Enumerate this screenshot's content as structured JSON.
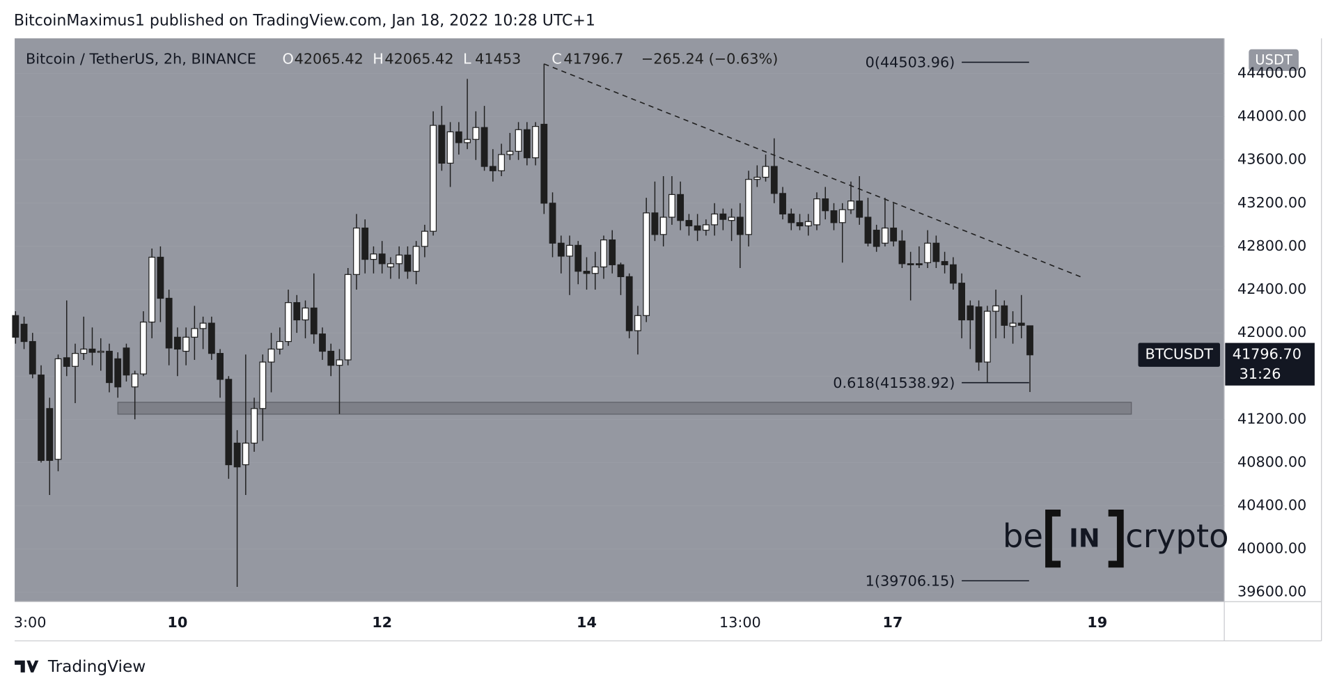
{
  "header": {
    "title": "BitcoinMaximus1 published on TradingView.com, Jan 18, 2022 10:28 UTC+1"
  },
  "chart_data": {
    "type": "candlestick",
    "symbol": "Bitcoin / TetherUS, 2h, BINANCE",
    "ohlc_legend": {
      "O": 42065.42,
      "H": 42065.42,
      "L": 41453.0,
      "C": 41796.7,
      "change": "−265.24 (−0.63%)"
    },
    "ohlc_letters": [
      "O",
      "H",
      "L",
      "C"
    ],
    "currency": "USDT",
    "ticker": "BTCUSDT",
    "last_price": {
      "value": 41796.7,
      "label": "41796.70"
    },
    "countdown": "31:26",
    "candles": [
      [
        42160,
        42200,
        41900,
        41960
      ],
      [
        42080,
        42150,
        41850,
        41920
      ],
      [
        41920,
        42000,
        41580,
        41620
      ],
      [
        41610,
        41700,
        40800,
        40820
      ],
      [
        41300,
        41400,
        40500,
        40820
      ],
      [
        40830,
        41800,
        40720,
        41760
      ],
      [
        41770,
        42300,
        41600,
        41690
      ],
      [
        41690,
        41900,
        41350,
        41810
      ],
      [
        41810,
        42150,
        41750,
        41850
      ],
      [
        41850,
        42050,
        41700,
        41820
      ],
      [
        41820,
        41950,
        41650,
        41830
      ],
      [
        41830,
        41900,
        41450,
        41540
      ],
      [
        41760,
        41820,
        41400,
        41500
      ],
      [
        41860,
        41900,
        41550,
        41610
      ],
      [
        41500,
        41650,
        41200,
        41620
      ],
      [
        41620,
        42200,
        41600,
        42100
      ],
      [
        42100,
        42780,
        41950,
        42700
      ],
      [
        42700,
        42800,
        42100,
        42320
      ],
      [
        42320,
        42400,
        41700,
        41860
      ],
      [
        41960,
        42050,
        41600,
        41850
      ],
      [
        41830,
        42050,
        41700,
        41960
      ],
      [
        41960,
        42250,
        41750,
        42040
      ],
      [
        42040,
        42150,
        41850,
        42090
      ],
      [
        42090,
        42150,
        41750,
        41810
      ],
      [
        41810,
        41850,
        41400,
        41570
      ],
      [
        41570,
        41600,
        40650,
        40780
      ],
      [
        40980,
        41100,
        39650,
        40760
      ],
      [
        40780,
        41800,
        40500,
        40980
      ],
      [
        40980,
        41400,
        40900,
        41300
      ],
      [
        41300,
        41800,
        41000,
        41730
      ],
      [
        41730,
        42000,
        41450,
        41850
      ],
      [
        41850,
        42050,
        41800,
        41920
      ],
      [
        41920,
        42400,
        41880,
        42280
      ],
      [
        42280,
        42350,
        42000,
        42120
      ],
      [
        42120,
        42300,
        41950,
        42230
      ],
      [
        42230,
        42550,
        41900,
        41990
      ],
      [
        41990,
        42050,
        41750,
        41830
      ],
      [
        41830,
        41900,
        41600,
        41700
      ],
      [
        41700,
        41850,
        41250,
        41750
      ],
      [
        41750,
        42600,
        41700,
        42540
      ],
      [
        42540,
        43100,
        42400,
        42970
      ],
      [
        42970,
        43050,
        42550,
        42680
      ],
      [
        42680,
        42800,
        42550,
        42730
      ],
      [
        42730,
        42850,
        42550,
        42640
      ],
      [
        42610,
        42700,
        42500,
        42640
      ],
      [
        42640,
        42800,
        42500,
        42720
      ],
      [
        42720,
        42800,
        42500,
        42570
      ],
      [
        42570,
        42850,
        42450,
        42800
      ],
      [
        42800,
        43000,
        42700,
        42940
      ],
      [
        42940,
        44050,
        42900,
        43920
      ],
      [
        43920,
        44100,
        43500,
        43570
      ],
      [
        43570,
        43950,
        43350,
        43860
      ],
      [
        43860,
        43950,
        43650,
        43760
      ],
      [
        43760,
        44350,
        43700,
        43790
      ],
      [
        43790,
        44050,
        43600,
        43900
      ],
      [
        43900,
        44100,
        43500,
        43540
      ],
      [
        43540,
        43700,
        43400,
        43500
      ],
      [
        43500,
        43750,
        43450,
        43650
      ],
      [
        43650,
        43850,
        43600,
        43680
      ],
      [
        43680,
        43950,
        43600,
        43880
      ],
      [
        43880,
        43950,
        43550,
        43620
      ],
      [
        43620,
        43950,
        43550,
        43910
      ],
      [
        43930,
        44490,
        43100,
        43200
      ],
      [
        43200,
        43300,
        42700,
        42830
      ],
      [
        42830,
        42900,
        42550,
        42710
      ],
      [
        42710,
        42900,
        42350,
        42810
      ],
      [
        42810,
        42850,
        42450,
        42570
      ],
      [
        42570,
        42700,
        42400,
        42550
      ],
      [
        42550,
        42750,
        42400,
        42610
      ],
      [
        42610,
        42900,
        42500,
        42860
      ],
      [
        42860,
        42950,
        42550,
        42630
      ],
      [
        42630,
        42650,
        42350,
        42520
      ],
      [
        42520,
        42550,
        41950,
        42020
      ],
      [
        42020,
        42250,
        41800,
        42160
      ],
      [
        42160,
        43250,
        42100,
        43110
      ],
      [
        43110,
        43400,
        42850,
        42910
      ],
      [
        42910,
        43450,
        42800,
        43070
      ],
      [
        43070,
        43450,
        43000,
        43280
      ],
      [
        43280,
        43400,
        42950,
        43040
      ],
      [
        43040,
        43100,
        42900,
        42990
      ],
      [
        42990,
        43100,
        42850,
        42950
      ],
      [
        42950,
        43050,
        42900,
        43000
      ],
      [
        43000,
        43200,
        42900,
        43100
      ],
      [
        43100,
        43150,
        42950,
        43050
      ],
      [
        43040,
        43150,
        42850,
        43070
      ],
      [
        43070,
        43200,
        42600,
        42910
      ],
      [
        42910,
        43500,
        42800,
        43420
      ],
      [
        43420,
        43550,
        43350,
        43440
      ],
      [
        43440,
        43650,
        43400,
        43540
      ],
      [
        43540,
        43800,
        43200,
        43290
      ],
      [
        43290,
        43350,
        43050,
        43100
      ],
      [
        43100,
        43150,
        42950,
        43020
      ],
      [
        43020,
        43100,
        42950,
        42990
      ],
      [
        42990,
        43100,
        42900,
        43030
      ],
      [
        43000,
        43300,
        42950,
        43240
      ],
      [
        43240,
        43350,
        43050,
        43130
      ],
      [
        43130,
        43200,
        42950,
        43020
      ],
      [
        43020,
        43200,
        42650,
        43140
      ],
      [
        43140,
        43400,
        43100,
        43220
      ],
      [
        43220,
        43450,
        43000,
        43070
      ],
      [
        43070,
        43250,
        42800,
        42830
      ],
      [
        42950,
        43000,
        42750,
        42800
      ],
      [
        42830,
        43250,
        42800,
        42970
      ],
      [
        42970,
        43200,
        42800,
        42850
      ],
      [
        42850,
        42950,
        42600,
        42640
      ],
      [
        42640,
        42750,
        42300,
        42630
      ],
      [
        42640,
        42800,
        42600,
        42630
      ],
      [
        42650,
        42950,
        42600,
        42830
      ],
      [
        42830,
        42900,
        42600,
        42660
      ],
      [
        42660,
        42750,
        42550,
        42630
      ],
      [
        42630,
        42700,
        42400,
        42460
      ],
      [
        42460,
        42550,
        41950,
        42120
      ],
      [
        42250,
        42300,
        41850,
        42120
      ],
      [
        42240,
        42300,
        41650,
        41730
      ],
      [
        41730,
        42250,
        41540,
        42200
      ],
      [
        42200,
        42400,
        41950,
        42250
      ],
      [
        42250,
        42300,
        41950,
        42070
      ],
      [
        42060,
        42200,
        41900,
        42090
      ],
      [
        42090,
        42350,
        41950,
        42070
      ],
      [
        42065.42,
        42065.42,
        41453.0,
        41796.7
      ]
    ],
    "up_color": "#ffffff",
    "down_color": "#1e1e1e",
    "background": "#9598a1",
    "ylim": [
      39513,
      44725
    ],
    "yticks": [
      {
        "value": 39600,
        "label": "39600.00"
      },
      {
        "value": 40000,
        "label": "40000.00"
      },
      {
        "value": 40400,
        "label": "40400.00"
      },
      {
        "value": 40800,
        "label": "40800.00"
      },
      {
        "value": 41200,
        "label": "41200.00"
      },
      {
        "value": 41600,
        "label": "41600.00"
      },
      {
        "value": 42000,
        "label": "42000.00"
      },
      {
        "value": 42400,
        "label": "42400.00"
      },
      {
        "value": 42800,
        "label": "42800.00"
      },
      {
        "value": 43200,
        "label": "43200.00"
      },
      {
        "value": 43600,
        "label": "43600.00"
      },
      {
        "value": 44000,
        "label": "44000.00"
      },
      {
        "value": 44400,
        "label": "44400.00"
      }
    ],
    "xtick_labels": [
      "3:00",
      "10",
      "12",
      "14",
      "13:00",
      "17",
      "19"
    ],
    "fib_levels": [
      {
        "label": "0(44503.96)",
        "value": 44503.96
      },
      {
        "label": "0.618(41538.92)",
        "value": 41538.92
      },
      {
        "label": "1(39706.15)",
        "value": 39706.15
      }
    ]
  },
  "watermark": {
    "left": "be",
    "middle": "IN",
    "right": "crypto"
  },
  "footer": {
    "brand": "TradingView"
  }
}
